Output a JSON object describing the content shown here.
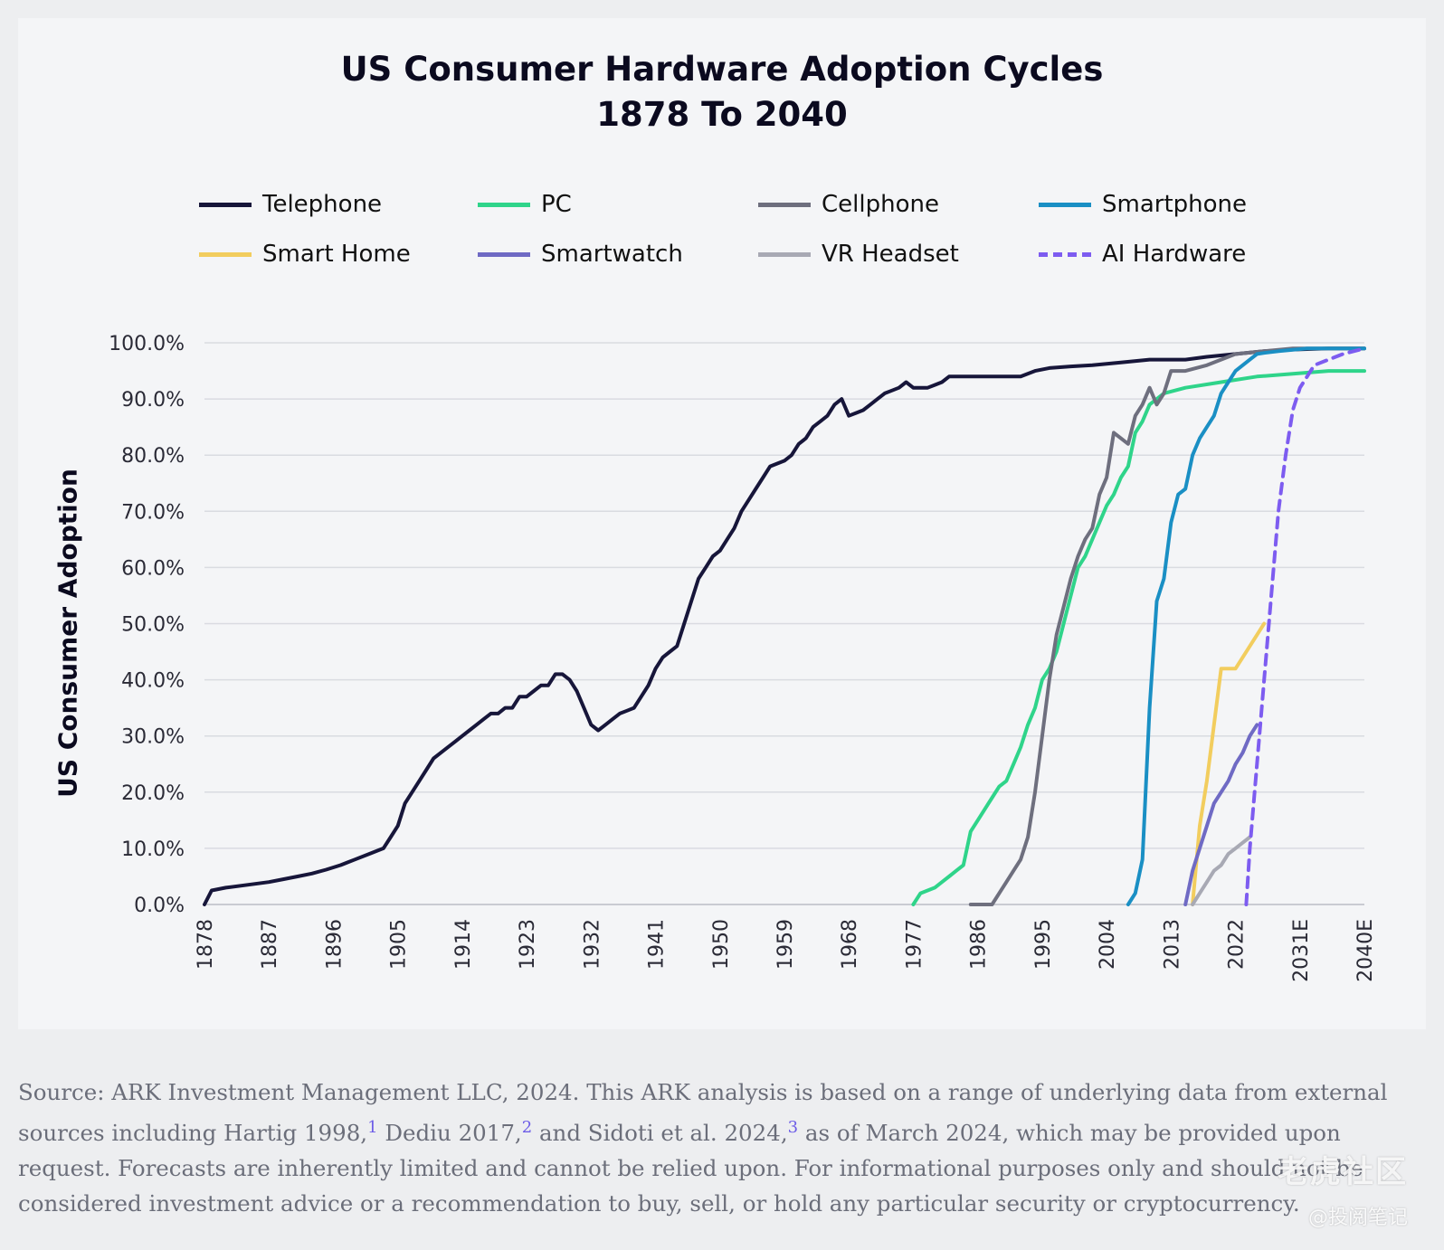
{
  "chart_data": {
    "type": "line",
    "title_line1": "US Consumer Hardware Adoption Cycles",
    "title_line2": "1878 To 2040",
    "xlabel": "",
    "ylabel": "US Consumer Adoption",
    "xlim": [
      1878,
      2040
    ],
    "ylim": [
      0,
      100
    ],
    "x_ticks": [
      "1878",
      "1887",
      "1896",
      "1905",
      "1914",
      "1923",
      "1932",
      "1941",
      "1950",
      "1959",
      "1968",
      "1977",
      "1986",
      "1995",
      "2004",
      "2013",
      "2022",
      "2031E",
      "2040E"
    ],
    "y_ticks": [
      "0.0%",
      "10.0%",
      "20.0%",
      "30.0%",
      "40.0%",
      "50.0%",
      "60.0%",
      "70.0%",
      "80.0%",
      "90.0%",
      "100.0%"
    ],
    "grid": true,
    "legend_position": "top",
    "series": [
      {
        "name": "Telephone",
        "color": "#17163a",
        "dash": false,
        "points": [
          [
            1878,
            0
          ],
          [
            1879,
            2.5
          ],
          [
            1881,
            3
          ],
          [
            1884,
            3.5
          ],
          [
            1887,
            4
          ],
          [
            1889,
            4.5
          ],
          [
            1891,
            5
          ],
          [
            1893,
            5.5
          ],
          [
            1895,
            6.2
          ],
          [
            1897,
            7
          ],
          [
            1899,
            8
          ],
          [
            1901,
            9
          ],
          [
            1903,
            10
          ],
          [
            1904,
            12
          ],
          [
            1905,
            14
          ],
          [
            1906,
            18
          ],
          [
            1907,
            20
          ],
          [
            1908,
            22
          ],
          [
            1909,
            24
          ],
          [
            1910,
            26
          ],
          [
            1911,
            27
          ],
          [
            1912,
            28
          ],
          [
            1913,
            29
          ],
          [
            1914,
            30
          ],
          [
            1915,
            31
          ],
          [
            1916,
            32
          ],
          [
            1917,
            33
          ],
          [
            1918,
            34
          ],
          [
            1919,
            34
          ],
          [
            1920,
            35
          ],
          [
            1921,
            35
          ],
          [
            1922,
            37
          ],
          [
            1923,
            37
          ],
          [
            1924,
            38
          ],
          [
            1925,
            39
          ],
          [
            1926,
            39
          ],
          [
            1927,
            41
          ],
          [
            1928,
            41
          ],
          [
            1929,
            40
          ],
          [
            1930,
            38
          ],
          [
            1931,
            35
          ],
          [
            1932,
            32
          ],
          [
            1933,
            31
          ],
          [
            1934,
            32
          ],
          [
            1935,
            33
          ],
          [
            1936,
            34
          ],
          [
            1937,
            34.5
          ],
          [
            1938,
            35
          ],
          [
            1939,
            37
          ],
          [
            1940,
            39
          ],
          [
            1941,
            42
          ],
          [
            1942,
            44
          ],
          [
            1943,
            45
          ],
          [
            1944,
            46
          ],
          [
            1945,
            50
          ],
          [
            1946,
            54
          ],
          [
            1947,
            58
          ],
          [
            1948,
            60
          ],
          [
            1949,
            62
          ],
          [
            1950,
            63
          ],
          [
            1951,
            65
          ],
          [
            1952,
            67
          ],
          [
            1953,
            70
          ],
          [
            1954,
            72
          ],
          [
            1955,
            74
          ],
          [
            1956,
            76
          ],
          [
            1957,
            78
          ],
          [
            1958,
            78.5
          ],
          [
            1959,
            79
          ],
          [
            1960,
            80
          ],
          [
            1961,
            82
          ],
          [
            1962,
            83
          ],
          [
            1963,
            85
          ],
          [
            1964,
            86
          ],
          [
            1965,
            87
          ],
          [
            1966,
            89
          ],
          [
            1967,
            90
          ],
          [
            1968,
            87
          ],
          [
            1969,
            87.5
          ],
          [
            1970,
            88
          ],
          [
            1971,
            89
          ],
          [
            1972,
            90
          ],
          [
            1973,
            91
          ],
          [
            1974,
            91.5
          ],
          [
            1975,
            92
          ],
          [
            1976,
            93
          ],
          [
            1977,
            92
          ],
          [
            1978,
            92
          ],
          [
            1979,
            92
          ],
          [
            1980,
            92.5
          ],
          [
            1981,
            93
          ],
          [
            1982,
            94
          ],
          [
            1985,
            94
          ],
          [
            1990,
            94
          ],
          [
            1992,
            94
          ],
          [
            1994,
            95
          ],
          [
            1996,
            95.5
          ],
          [
            1999,
            95.8
          ],
          [
            2002,
            96
          ],
          [
            2006,
            96.5
          ],
          [
            2010,
            97
          ],
          [
            2015,
            97
          ],
          [
            2018,
            97.5
          ],
          [
            2022,
            98
          ],
          [
            2026,
            98.5
          ],
          [
            2030,
            98.8
          ],
          [
            2035,
            99
          ],
          [
            2040,
            99
          ]
        ]
      },
      {
        "name": "PC",
        "color": "#2fd48a",
        "dash": false,
        "points": [
          [
            1977,
            0
          ],
          [
            1978,
            2
          ],
          [
            1979,
            2.5
          ],
          [
            1980,
            3
          ],
          [
            1981,
            4
          ],
          [
            1982,
            5
          ],
          [
            1983,
            6
          ],
          [
            1984,
            7
          ],
          [
            1985,
            13
          ],
          [
            1986,
            15
          ],
          [
            1987,
            17
          ],
          [
            1988,
            19
          ],
          [
            1989,
            21
          ],
          [
            1990,
            22
          ],
          [
            1991,
            25
          ],
          [
            1992,
            28
          ],
          [
            1993,
            32
          ],
          [
            1994,
            35
          ],
          [
            1995,
            40
          ],
          [
            1996,
            42
          ],
          [
            1997,
            45
          ],
          [
            1998,
            50
          ],
          [
            1999,
            55
          ],
          [
            2000,
            60
          ],
          [
            2001,
            62
          ],
          [
            2002,
            65
          ],
          [
            2003,
            68
          ],
          [
            2004,
            71
          ],
          [
            2005,
            73
          ],
          [
            2006,
            76
          ],
          [
            2007,
            78
          ],
          [
            2008,
            84
          ],
          [
            2009,
            86
          ],
          [
            2010,
            89
          ],
          [
            2012,
            91
          ],
          [
            2015,
            92
          ],
          [
            2020,
            93
          ],
          [
            2025,
            94
          ],
          [
            2030,
            94.5
          ],
          [
            2035,
            95
          ],
          [
            2040,
            95
          ]
        ]
      },
      {
        "name": "Cellphone",
        "color": "#6e6f7e",
        "dash": false,
        "points": [
          [
            1985,
            0
          ],
          [
            1988,
            0
          ],
          [
            1989,
            2
          ],
          [
            1990,
            4
          ],
          [
            1991,
            6
          ],
          [
            1992,
            8
          ],
          [
            1993,
            12
          ],
          [
            1994,
            20
          ],
          [
            1995,
            30
          ],
          [
            1996,
            40
          ],
          [
            1997,
            48
          ],
          [
            1998,
            53
          ],
          [
            1999,
            58
          ],
          [
            2000,
            62
          ],
          [
            2001,
            65
          ],
          [
            2002,
            67
          ],
          [
            2003,
            73
          ],
          [
            2004,
            76
          ],
          [
            2005,
            84
          ],
          [
            2006,
            83
          ],
          [
            2007,
            82
          ],
          [
            2008,
            87
          ],
          [
            2009,
            89
          ],
          [
            2010,
            92
          ],
          [
            2011,
            89
          ],
          [
            2012,
            91
          ],
          [
            2013,
            95
          ],
          [
            2014,
            95
          ],
          [
            2015,
            95
          ],
          [
            2018,
            96
          ],
          [
            2022,
            98
          ],
          [
            2026,
            98.5
          ],
          [
            2030,
            99
          ],
          [
            2040,
            99
          ]
        ]
      },
      {
        "name": "Smartphone",
        "color": "#1a8fc4",
        "dash": false,
        "points": [
          [
            2007,
            0
          ],
          [
            2008,
            2
          ],
          [
            2009,
            8
          ],
          [
            2010,
            35
          ],
          [
            2011,
            54
          ],
          [
            2012,
            58
          ],
          [
            2013,
            68
          ],
          [
            2014,
            73
          ],
          [
            2015,
            74
          ],
          [
            2016,
            80
          ],
          [
            2017,
            83
          ],
          [
            2018,
            85
          ],
          [
            2019,
            87
          ],
          [
            2020,
            91
          ],
          [
            2021,
            93
          ],
          [
            2022,
            95
          ],
          [
            2023,
            96
          ],
          [
            2024,
            97
          ],
          [
            2025,
            98
          ],
          [
            2026,
            98.2
          ],
          [
            2028,
            98.5
          ],
          [
            2032,
            99
          ],
          [
            2040,
            99
          ]
        ]
      },
      {
        "name": "Smart Home",
        "color": "#f2cd5e",
        "dash": false,
        "points": [
          [
            2016,
            0
          ],
          [
            2017,
            14
          ],
          [
            2018,
            22
          ],
          [
            2019,
            32
          ],
          [
            2020,
            42
          ],
          [
            2022,
            42
          ],
          [
            2023,
            44
          ],
          [
            2025,
            48
          ],
          [
            2026,
            50
          ]
        ]
      },
      {
        "name": "Smartwatch",
        "color": "#6f6ac4",
        "dash": false,
        "points": [
          [
            2015,
            0
          ],
          [
            2016,
            6
          ],
          [
            2017,
            10
          ],
          [
            2018,
            14
          ],
          [
            2019,
            18
          ],
          [
            2020,
            20
          ],
          [
            2021,
            22
          ],
          [
            2022,
            25
          ],
          [
            2023,
            27
          ],
          [
            2024,
            30
          ],
          [
            2025,
            32
          ]
        ]
      },
      {
        "name": "VR Headset",
        "color": "#a8a9b4",
        "dash": false,
        "points": [
          [
            2016,
            0
          ],
          [
            2017,
            2
          ],
          [
            2018,
            4
          ],
          [
            2019,
            6
          ],
          [
            2020,
            7
          ],
          [
            2021,
            9
          ],
          [
            2022,
            10
          ],
          [
            2023,
            11
          ],
          [
            2024,
            12
          ]
        ]
      },
      {
        "name": "AI Hardware",
        "color": "#7d5cf0",
        "dash": true,
        "points": [
          [
            2023.5,
            0
          ],
          [
            2024,
            10
          ],
          [
            2025,
            25
          ],
          [
            2026,
            40
          ],
          [
            2027,
            55
          ],
          [
            2028,
            70
          ],
          [
            2029,
            80
          ],
          [
            2030,
            88
          ],
          [
            2031,
            92
          ],
          [
            2032,
            94
          ],
          [
            2033,
            96
          ],
          [
            2035,
            97
          ],
          [
            2037,
            98
          ],
          [
            2040,
            99
          ]
        ]
      }
    ]
  },
  "source": {
    "text1": "Source: ARK Investment Management LLC, 2024. This ARK analysis is based on a range of underlying data from external sources including Hartig 1998,",
    "sup1": "1",
    "text2": " Dediu 2017,",
    "sup2": "2",
    "text3": " and Sidoti et al. 2024,",
    "sup3": "3",
    "text4": " as of March 2024, which may be provided upon request. Forecasts are inherently limited and cannot be relied upon. For informational purposes only and should not be considered investment advice or a recommendation to buy, sell, or hold any particular security or cryptocurrency."
  },
  "watermark": {
    "main": "老虎社区",
    "sub": "@投阅笔记"
  }
}
